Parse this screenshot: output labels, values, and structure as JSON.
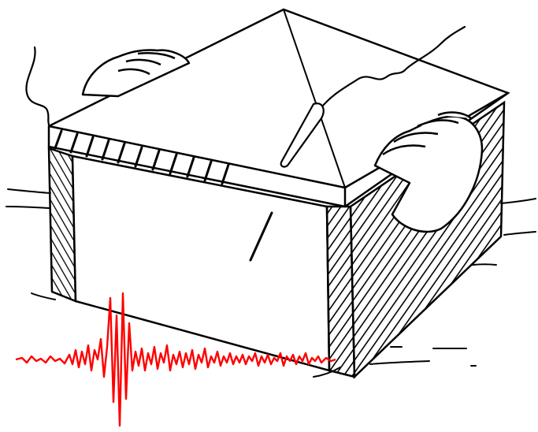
{
  "illustration": {
    "ink_color": "#000000",
    "seismogram_color": "#ff0000",
    "background_color": "#ffffff"
  }
}
